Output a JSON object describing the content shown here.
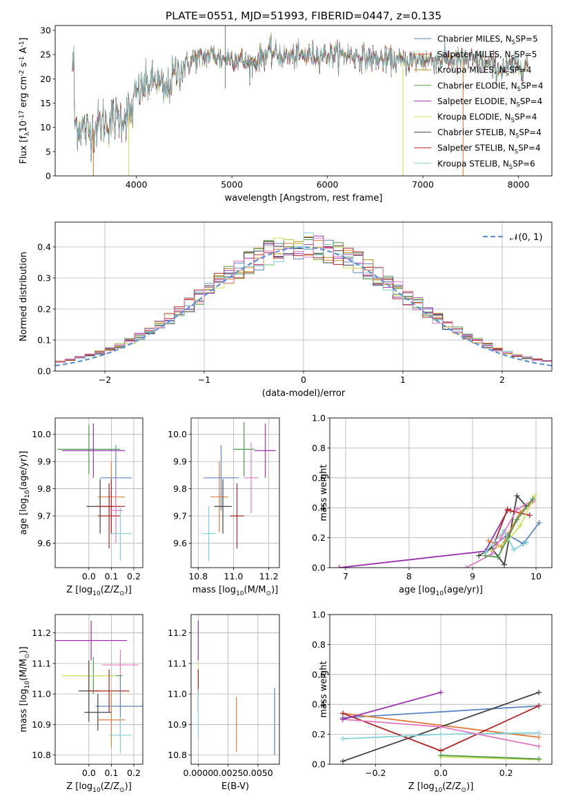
{
  "title": "PLATE=0551, MJD=51993, FIBERID=0447, z=0.135",
  "chart_data": [
    {
      "type": "line",
      "id": "spectrum",
      "xlabel": "wavelength [Angstrom, rest frame]",
      "ylabel": "Flux [f_λ 10^-17 erg cm^-2 s^-1 A^-1]",
      "xlim": [
        3150,
        8350
      ],
      "ylim": [
        0,
        31
      ],
      "xticks": [
        4000,
        5000,
        6000,
        7000,
        8000
      ],
      "yticks": [
        0,
        5,
        10,
        15,
        20,
        25,
        30
      ],
      "legend_position": "top-right",
      "series": [
        {
          "name": "Chabrier MILES, N_SSP=5",
          "color": "#5b84c4"
        },
        {
          "name": "Salpeter MILES, N_SSP=5",
          "color": "#e07b39"
        },
        {
          "name": "Kroupa MILES, N_SSP=4",
          "color": "#b8860b"
        },
        {
          "name": "Chabrier ELODIE, N_SSP=4",
          "color": "#4c9a4c"
        },
        {
          "name": "Salpeter ELODIE, N_SSP=4",
          "color": "#9b30b0"
        },
        {
          "name": "Kroupa ELODIE, N_SSP=4",
          "color": "#cfe05a"
        },
        {
          "name": "Chabrier STELIB, N_SSP=4",
          "color": "#404040"
        },
        {
          "name": "Salpeter STELIB, N_SSP=4",
          "color": "#b22222"
        },
        {
          "name": "Kroupa STELIB, N_SSP=6",
          "color": "#7fd1d8"
        }
      ],
      "continuum_knots": [
        [
          3350,
          11
        ],
        [
          3500,
          9
        ],
        [
          3650,
          11
        ],
        [
          3800,
          12
        ],
        [
          3950,
          13
        ],
        [
          4000,
          17
        ],
        [
          4200,
          20
        ],
        [
          4300,
          17
        ],
        [
          4400,
          21
        ],
        [
          4600,
          24
        ],
        [
          4800,
          25
        ],
        [
          4900,
          24
        ],
        [
          5000,
          24.5
        ],
        [
          5200,
          23
        ],
        [
          5400,
          25.5
        ],
        [
          5600,
          24.5
        ],
        [
          5900,
          25
        ],
        [
          6200,
          25
        ],
        [
          6500,
          24
        ],
        [
          6800,
          23.5
        ],
        [
          7000,
          24
        ],
        [
          7300,
          24
        ],
        [
          7600,
          23.5
        ],
        [
          7800,
          22
        ],
        [
          8100,
          23
        ]
      ],
      "dropouts": [
        {
          "x": 3550,
          "color": "#e07b39"
        },
        {
          "x": 3920,
          "color": "#cfe05a"
        },
        {
          "x": 6790,
          "color": "#cfe05a"
        },
        {
          "x": 7420,
          "color": "#e07b39"
        }
      ]
    },
    {
      "type": "line",
      "id": "residuals",
      "xlabel": "(data-model)/error",
      "ylabel": "Normed distribution",
      "xlim": [
        -2.5,
        2.5
      ],
      "ylim": [
        0,
        0.48
      ],
      "xticks": [
        -2,
        -1,
        0,
        1,
        2
      ],
      "yticks": [
        0.0,
        0.1,
        0.2,
        0.3,
        0.4
      ],
      "legend_position": "top-right",
      "legend": "N(0,1)",
      "gaussian": {
        "mu": 0,
        "sigma": 1,
        "color": "#5b8fd6"
      },
      "bins": 50,
      "series": [
        {
          "color": "#5b84c4"
        },
        {
          "color": "#e07b39"
        },
        {
          "color": "#b8860b"
        },
        {
          "color": "#4c9a4c"
        },
        {
          "color": "#9b30b0"
        },
        {
          "color": "#cfe05a"
        },
        {
          "color": "#404040"
        },
        {
          "color": "#b22222"
        },
        {
          "color": "#7fd1d8"
        },
        {
          "color": "#e377c2"
        }
      ]
    },
    {
      "type": "scatter",
      "id": "age_vs_Z",
      "xlabel": "Z [log10(Z/Z⊙)]",
      "ylabel": "age  [log10(age/yr)]",
      "xlim": [
        -0.15,
        0.24
      ],
      "ylim": [
        9.51,
        10.06
      ],
      "xticks": [
        0.0,
        0.1,
        0.2
      ],
      "yticks": [
        9.6,
        9.7,
        9.8,
        9.9,
        10.0
      ],
      "points": [
        {
          "x": 0.0,
          "y": 9.945,
          "xerr": 0.14,
          "yerr": 0.09,
          "color": "#4c9a4c"
        },
        {
          "x": 0.02,
          "y": 9.94,
          "xerr": 0.14,
          "yerr": 0.1,
          "color": "#9b30b0"
        },
        {
          "x": 0.12,
          "y": 9.84,
          "xerr": 0.07,
          "yerr": 0.12,
          "color": "#5b84c4"
        },
        {
          "x": 0.1,
          "y": 9.77,
          "xerr": 0.06,
          "yerr": 0.13,
          "color": "#e07b39"
        },
        {
          "x": 0.05,
          "y": 9.735,
          "xerr": 0.06,
          "yerr": 0.1,
          "color": "#404040"
        },
        {
          "x": 0.1,
          "y": 9.735,
          "xerr": 0.06,
          "yerr": 0.1,
          "color": "#b22222"
        },
        {
          "x": 0.09,
          "y": 9.7,
          "xerr": 0.05,
          "yerr": 0.12,
          "color": "#b22222"
        },
        {
          "x": 0.14,
          "y": 9.635,
          "xerr": 0.05,
          "yerr": 0.1,
          "color": "#7fd1d8"
        },
        {
          "x": 0.12,
          "y": 9.72,
          "xerr": 0.03,
          "yerr": 0.12,
          "color": "#e377c2"
        }
      ]
    },
    {
      "type": "scatter",
      "id": "age_vs_mass",
      "xlabel": "mass [log10(M/M⊙)]",
      "ylabel": "",
      "xlim": [
        10.76,
        11.26
      ],
      "ylim": [
        9.51,
        10.06
      ],
      "xticks": [
        10.8,
        11.0,
        11.2
      ],
      "yticks": [
        9.6,
        9.7,
        9.8,
        9.9,
        10.0
      ],
      "points": [
        {
          "x": 11.06,
          "y": 9.945,
          "xerr": 0.06,
          "yerr": 0.1,
          "color": "#4c9a4c"
        },
        {
          "x": 11.18,
          "y": 9.94,
          "xerr": 0.06,
          "yerr": 0.1,
          "color": "#9b30b0"
        },
        {
          "x": 10.93,
          "y": 9.84,
          "xerr": 0.1,
          "yerr": 0.12,
          "color": "#5b84c4"
        },
        {
          "x": 10.92,
          "y": 9.77,
          "xerr": 0.05,
          "yerr": 0.13,
          "color": "#e07b39"
        },
        {
          "x": 10.94,
          "y": 9.735,
          "xerr": 0.05,
          "yerr": 0.1,
          "color": "#404040"
        },
        {
          "x": 11.02,
          "y": 9.7,
          "xerr": 0.04,
          "yerr": 0.12,
          "color": "#b22222"
        },
        {
          "x": 10.86,
          "y": 9.635,
          "xerr": 0.04,
          "yerr": 0.1,
          "color": "#7fd1d8"
        },
        {
          "x": 11.1,
          "y": 9.84,
          "xerr": 0.04,
          "yerr": 0.13,
          "color": "#e377c2"
        }
      ]
    },
    {
      "type": "line",
      "id": "weight_vs_age",
      "xlabel": "age  [log10(age/yr)]",
      "ylabel": "mass weight",
      "xlim": [
        6.75,
        10.25
      ],
      "ylim": [
        0,
        1
      ],
      "xticks": [
        7,
        8,
        9,
        10
      ],
      "yticks": [
        0.0,
        0.2,
        0.4,
        0.6,
        0.8,
        1.0
      ],
      "series": [
        {
          "color": "#9b30b0",
          "x": [
            6.9,
            9.2,
            9.55
          ],
          "y": [
            0.0,
            0.11,
            0.38
          ]
        },
        {
          "color": "#5b84c4",
          "x": [
            9.2,
            9.55,
            9.8,
            10.05
          ],
          "y": [
            0.1,
            0.22,
            0.16,
            0.3
          ]
        },
        {
          "color": "#404040",
          "x": [
            9.1,
            9.3,
            9.5,
            9.7,
            9.85
          ],
          "y": [
            0.08,
            0.13,
            0.02,
            0.48,
            0.41
          ]
        },
        {
          "color": "#b22222",
          "x": [
            9.35,
            9.55,
            9.6,
            9.9
          ],
          "y": [
            0.17,
            0.39,
            0.38,
            0.35
          ]
        },
        {
          "color": "#e07b39",
          "x": [
            9.25,
            9.45,
            9.75,
            9.95
          ],
          "y": [
            0.18,
            0.14,
            0.37,
            0.44
          ]
        },
        {
          "color": "#cfe05a",
          "x": [
            9.3,
            9.55,
            9.75,
            9.98
          ],
          "y": [
            0.11,
            0.18,
            0.28,
            0.48
          ]
        },
        {
          "color": "#7fd1d8",
          "x": [
            9.2,
            9.5,
            9.65,
            9.85
          ],
          "y": [
            0.1,
            0.25,
            0.12,
            0.17
          ]
        },
        {
          "color": "#e377c2",
          "x": [
            8.9,
            9.3,
            9.45,
            9.7,
            9.95
          ],
          "y": [
            0.0,
            0.09,
            0.2,
            0.39,
            0.45
          ]
        },
        {
          "color": "#4c9a4c",
          "x": [
            9.2,
            9.4,
            9.7,
            9.95
          ],
          "y": [
            0.08,
            0.07,
            0.32,
            0.46
          ]
        }
      ]
    },
    {
      "type": "scatter",
      "id": "mass_vs_Z",
      "xlabel": "Z [log10(Z/Z⊙)]",
      "ylabel": "mass [log10(M/M⊙)]",
      "xlim": [
        -0.15,
        0.24
      ],
      "ylim": [
        10.77,
        11.26
      ],
      "xticks": [
        0.0,
        0.1,
        0.2
      ],
      "yticks": [
        10.8,
        10.9,
        11.0,
        11.1,
        11.2
      ],
      "points": [
        {
          "x": 0.01,
          "y": 11.175,
          "xerr": 0.16,
          "yerr": 0.065,
          "color": "#9b30b0"
        },
        {
          "x": 0.14,
          "y": 11.095,
          "xerr": 0.08,
          "yerr": 0.05,
          "color": "#e377c2"
        },
        {
          "x": 0.02,
          "y": 11.06,
          "xerr": 0.13,
          "yerr": 0.06,
          "color": "#4c9a4c"
        },
        {
          "x": 0.0,
          "y": 11.06,
          "xerr": 0.12,
          "yerr": 0.05,
          "color": "#cfe05a"
        },
        {
          "x": 0.0,
          "y": 11.01,
          "xerr": 0.045,
          "yerr": 0.1,
          "color": "#404040"
        },
        {
          "x": 0.09,
          "y": 11.01,
          "xerr": 0.09,
          "yerr": 0.07,
          "color": "#b22222"
        },
        {
          "x": 0.14,
          "y": 10.96,
          "xerr": 0.11,
          "yerr": 0.1,
          "color": "#5b84c4"
        },
        {
          "x": 0.04,
          "y": 10.94,
          "xerr": 0.06,
          "yerr": 0.06,
          "color": "#404040"
        },
        {
          "x": 0.1,
          "y": 10.915,
          "xerr": 0.06,
          "yerr": 0.09,
          "color": "#e07b39"
        },
        {
          "x": 0.14,
          "y": 10.865,
          "xerr": 0.05,
          "yerr": 0.06,
          "color": "#7fd1d8"
        }
      ]
    },
    {
      "type": "scatter",
      "id": "mass_vs_EBV",
      "xlabel": "E(B-V)",
      "ylabel": "",
      "xlim": [
        -0.0006,
        0.0068
      ],
      "ylim": [
        10.77,
        11.26
      ],
      "xticks": [
        0.0,
        0.0025,
        0.005
      ],
      "xticklabels": [
        "0.0000",
        "0.0025",
        "0.0050"
      ],
      "yticks": [
        10.8,
        10.9,
        11.0,
        11.1,
        11.2
      ],
      "points": [
        {
          "x": 0.0,
          "y": 11.175,
          "yerr": 0.065,
          "color": "#9b30b0"
        },
        {
          "x": 0.0,
          "y": 11.06,
          "yerr": 0.04,
          "color": "#cfe05a"
        },
        {
          "x": 0.0,
          "y": 11.01,
          "yerr": 0.07,
          "color": "#b22222"
        },
        {
          "x": 0.0,
          "y": 10.935,
          "yerr": 0.08,
          "color": "#7fd1d8"
        },
        {
          "x": 0.0032,
          "y": 10.9,
          "yerr": 0.09,
          "color": "#e07b39"
        },
        {
          "x": 0.0064,
          "y": 10.91,
          "yerr": 0.11,
          "color": "#5b84c4"
        }
      ]
    },
    {
      "type": "line",
      "id": "weight_vs_Z",
      "xlabel": "Z [log10(Z/Z⊙)]",
      "ylabel": "mass weight",
      "xlim": [
        -0.34,
        0.34
      ],
      "ylim": [
        0,
        1
      ],
      "xticks": [
        -0.2,
        0.0,
        0.2
      ],
      "yticks": [
        0.0,
        0.2,
        0.4,
        0.6,
        0.8,
        1.0
      ],
      "series": [
        {
          "color": "#5b84c4",
          "x": [
            -0.3,
            0.3
          ],
          "y": [
            0.31,
            0.39
          ]
        },
        {
          "color": "#e07b39",
          "x": [
            -0.3,
            0.3
          ],
          "y": [
            0.34,
            0.18
          ]
        },
        {
          "color": "#404040",
          "x": [
            -0.3,
            0.3
          ],
          "y": [
            0.02,
            0.48
          ]
        },
        {
          "color": "#b22222",
          "x": [
            -0.3,
            0.0,
            0.3
          ],
          "y": [
            0.34,
            0.09,
            0.39
          ]
        },
        {
          "color": "#7fd1d8",
          "x": [
            -0.3,
            0.0,
            0.3
          ],
          "y": [
            0.17,
            0.2,
            0.21
          ]
        },
        {
          "color": "#e377c2",
          "x": [
            -0.3,
            0.0,
            0.3
          ],
          "y": [
            0.3,
            0.25,
            0.12
          ]
        },
        {
          "color": "#cfe05a",
          "x": [
            0.0,
            0.3
          ],
          "y": [
            0.05,
            0.03
          ]
        },
        {
          "color": "#4c9a4c",
          "x": [
            0.0,
            0.3
          ],
          "y": [
            0.06,
            0.035
          ]
        },
        {
          "color": "#9b30b0",
          "x": [
            -0.3,
            0.0
          ],
          "y": [
            0.3,
            0.48
          ]
        }
      ]
    }
  ]
}
